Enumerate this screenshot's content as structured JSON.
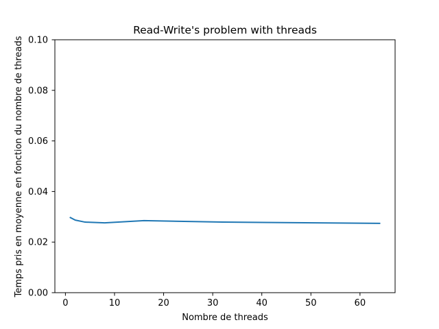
{
  "chart_data": {
    "type": "line",
    "title": "Read-Write's problem with threads",
    "xlabel": "Nombre de threads",
    "ylabel": "Temps pris en moyenne en fonction du nombre de threads",
    "xlim": [
      -2.15,
      67.15
    ],
    "ylim": [
      0,
      0.1
    ],
    "xticks": [
      0,
      10,
      20,
      30,
      40,
      50,
      60
    ],
    "xtick_labels": [
      "0",
      "10",
      "20",
      "30",
      "40",
      "50",
      "60"
    ],
    "yticks": [
      0,
      0.02,
      0.04,
      0.06,
      0.08,
      0.1
    ],
    "ytick_labels": [
      "0.00",
      "0.02",
      "0.04",
      "0.06",
      "0.08",
      "0.10"
    ],
    "grid": false,
    "series": [
      {
        "color": "#1f77b4",
        "x": [
          1,
          2,
          4,
          8,
          16,
          32,
          64
        ],
        "y": [
          0.0297,
          0.0287,
          0.0279,
          0.0276,
          0.0285,
          0.0279,
          0.0274
        ]
      }
    ]
  }
}
